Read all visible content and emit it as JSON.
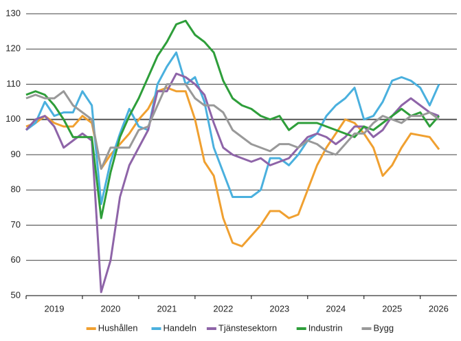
{
  "chart_data": {
    "type": "line",
    "x": [
      2019.0,
      2019.167,
      2019.333,
      2019.5,
      2019.667,
      2019.833,
      2020.0,
      2020.167,
      2020.333,
      2020.5,
      2020.667,
      2020.833,
      2021.0,
      2021.167,
      2021.333,
      2021.5,
      2021.667,
      2021.833,
      2022.0,
      2022.167,
      2022.333,
      2022.5,
      2022.667,
      2022.833,
      2023.0,
      2023.167,
      2023.333,
      2023.5,
      2023.667,
      2023.833,
      2024.0,
      2024.167,
      2024.333,
      2024.5,
      2024.667,
      2024.833,
      2025.0,
      2025.167,
      2025.333,
      2025.5,
      2025.667,
      2025.833,
      2026.0,
      2026.167,
      2026.333
    ],
    "series": [
      {
        "name": "Hushållen",
        "color": "#f0a030",
        "values": [
          98,
          99,
          101,
          99,
          98,
          98,
          101,
          99,
          86,
          90,
          93,
          96,
          100,
          103,
          108,
          109,
          108,
          108,
          100,
          88,
          84,
          72,
          65,
          64,
          67,
          70,
          74,
          74,
          72,
          73,
          80,
          87,
          92,
          96,
          100,
          99,
          96,
          92,
          84,
          87,
          92,
          96,
          95.5,
          95,
          91.5
        ]
      },
      {
        "name": "Handeln",
        "color": "#4ab0de",
        "values": [
          97,
          99,
          105,
          101,
          102,
          102,
          108,
          104,
          76,
          88,
          96,
          103,
          98,
          97,
          110,
          115,
          119,
          110,
          112,
          105,
          92,
          85,
          78,
          78,
          78,
          80,
          89,
          89,
          87,
          90,
          94,
          96,
          101,
          104,
          106,
          109,
          100,
          101,
          105,
          111,
          112,
          111,
          109,
          104,
          110
        ]
      },
      {
        "name": "Tjänstesektorn",
        "color": "#8e64a8",
        "values": [
          97,
          100,
          101,
          98,
          92,
          94,
          96,
          94,
          51,
          60,
          78,
          87,
          92,
          97,
          108,
          108,
          113,
          112,
          110,
          107,
          99,
          92,
          90,
          89,
          88,
          89,
          87,
          88,
          89,
          92,
          95,
          96,
          95,
          93,
          95,
          98,
          98,
          95,
          97,
          101,
          104,
          106,
          104,
          102,
          101
        ]
      },
      {
        "name": "Industrin",
        "color": "#2e9e3a",
        "values": [
          107,
          108,
          107,
          104,
          100,
          95,
          95,
          95,
          72,
          85,
          95,
          101,
          106,
          112,
          118,
          122,
          127,
          128,
          124,
          122,
          119,
          111,
          106,
          104,
          103,
          101,
          100,
          101,
          97,
          99,
          99,
          99,
          98,
          97,
          96,
          95,
          98,
          97,
          99,
          101,
          103,
          101,
          102,
          98,
          101
        ]
      },
      {
        "name": "Bygg",
        "color": "#999999",
        "values": [
          106,
          107,
          106,
          106,
          108,
          104,
          102,
          100,
          86,
          92,
          92,
          92,
          97,
          98,
          104,
          110,
          110,
          110,
          106,
          104,
          104,
          102,
          97,
          95,
          93,
          92,
          91,
          93,
          93,
          92,
          94,
          93,
          91,
          90,
          93,
          96,
          96,
          99,
          101,
          100,
          99,
          101,
          101,
          102,
          100
        ]
      }
    ],
    "xlim": [
      2019,
      2026.65
    ],
    "xticks": [
      2019,
      2020,
      2021,
      2022,
      2023,
      2024,
      2025,
      2026
    ],
    "ylim": [
      50,
      130
    ],
    "yticks": [
      50,
      60,
      70,
      80,
      90,
      100,
      110,
      120,
      130
    ],
    "reference_line": 100,
    "grid": true,
    "legend": "bottom"
  }
}
